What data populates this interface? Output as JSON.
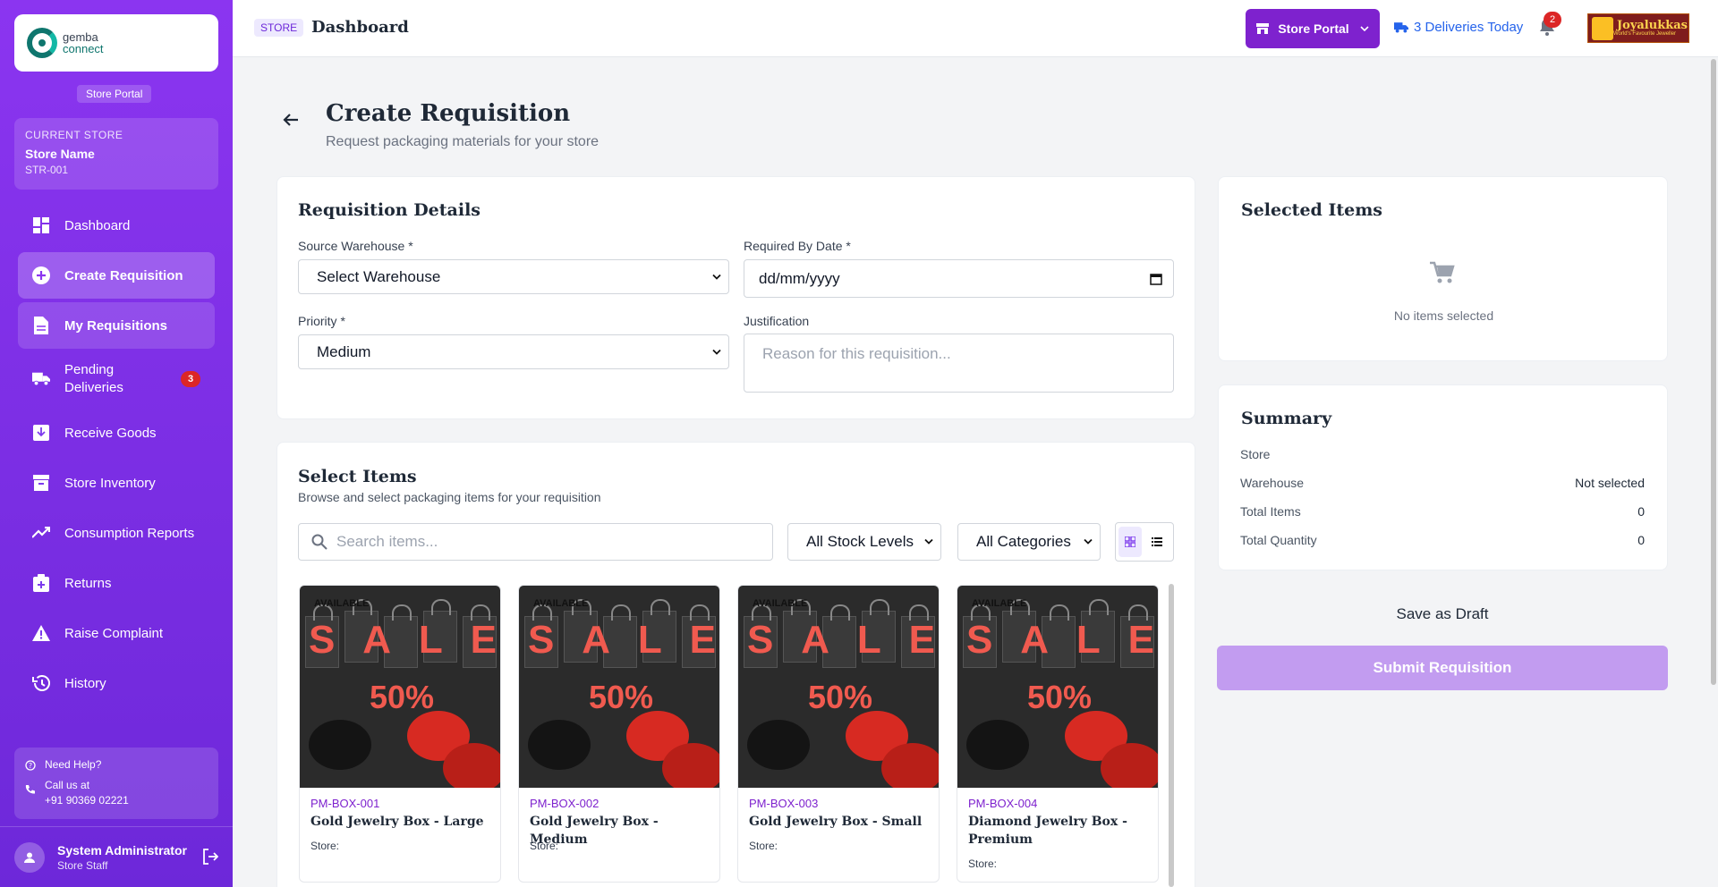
{
  "sidebar": {
    "logo": {
      "line1": "gemba",
      "line2": "connect"
    },
    "portal_label": "Store Portal",
    "current_store": {
      "caption": "CURRENT STORE",
      "name": "Store Name",
      "code": "STR-001"
    },
    "items": [
      {
        "label": "Dashboard",
        "icon": "dashboard-icon"
      },
      {
        "label": "Create Requisition",
        "icon": "plus-circle-icon"
      },
      {
        "label": "My Requisitions",
        "icon": "document-icon"
      },
      {
        "label": "Pending Deliveries",
        "icon": "truck-icon",
        "badge": "3"
      },
      {
        "label": "Receive Goods",
        "icon": "receive-icon"
      },
      {
        "label": "Store Inventory",
        "icon": "archive-icon"
      },
      {
        "label": "Consumption Reports",
        "icon": "trending-icon"
      },
      {
        "label": "Returns",
        "icon": "returns-icon"
      },
      {
        "label": "Raise Complaint",
        "icon": "warning-icon"
      },
      {
        "label": "History",
        "icon": "history-icon"
      }
    ],
    "help": {
      "title": "Need Help?",
      "call_label": "Call us at",
      "phone": "+91 90369 02221"
    },
    "user": {
      "name": "System Administrator",
      "role": "Store Staff"
    }
  },
  "header": {
    "tag": "STORE",
    "title": "Dashboard",
    "portal_button": "Store Portal",
    "deliveries": "3 Deliveries Today",
    "notifications_count": "2",
    "brand": {
      "name": "Joyalukkas",
      "tagline": "World's Favourite Jeweller"
    }
  },
  "page": {
    "title": "Create Requisition",
    "subtitle": "Request packaging materials for your store"
  },
  "details": {
    "title": "Requisition Details",
    "source_label": "Source Warehouse *",
    "source_value": "Select Warehouse",
    "date_label": "Required By Date *",
    "date_value": "dd/mm/yyyy",
    "priority_label": "Priority *",
    "priority_value": "Medium",
    "justification_label": "Justification",
    "justification_placeholder": "Reason for this requisition..."
  },
  "items_section": {
    "title": "Select Items",
    "subtitle": "Browse and select packaging items for your requisition",
    "search_placeholder": "Search items...",
    "stock_filter": "All Stock Levels",
    "category_filter": "All Categories",
    "products": [
      {
        "badge": "AVAILABLE",
        "code": "PM-BOX-001",
        "name": "Gold Jewelry Box - Large",
        "store": "Store:"
      },
      {
        "badge": "AVAILABLE",
        "code": "PM-BOX-002",
        "name": "Gold Jewelry Box - Medium",
        "store": "Store:"
      },
      {
        "badge": "AVAILABLE",
        "code": "PM-BOX-003",
        "name": "Gold Jewelry Box - Small",
        "store": "Store:"
      },
      {
        "badge": "AVAILABLE",
        "code": "PM-BOX-004",
        "name": "Diamond Jewelry Box - Premium",
        "store": "Store:"
      }
    ],
    "image_text": {
      "sale": "SALE",
      "percent": "50%"
    }
  },
  "selected": {
    "title": "Selected Items",
    "empty_text": "No items selected"
  },
  "summary": {
    "title": "Summary",
    "rows": [
      {
        "label": "Store",
        "value": ""
      },
      {
        "label": "Warehouse",
        "value": "Not selected"
      },
      {
        "label": "Total Items",
        "value": "0"
      },
      {
        "label": "Total Quantity",
        "value": "0"
      }
    ]
  },
  "actions": {
    "draft": "Save as Draft",
    "submit": "Submit Requisition"
  },
  "colors": {
    "sidebar_top": "#8b35f0",
    "sidebar_bottom": "#6d28d9",
    "accent": "#7e22ce",
    "badge_red": "#dc2626",
    "link_blue": "#2563eb",
    "submit_disabled": "#c29cf0"
  }
}
